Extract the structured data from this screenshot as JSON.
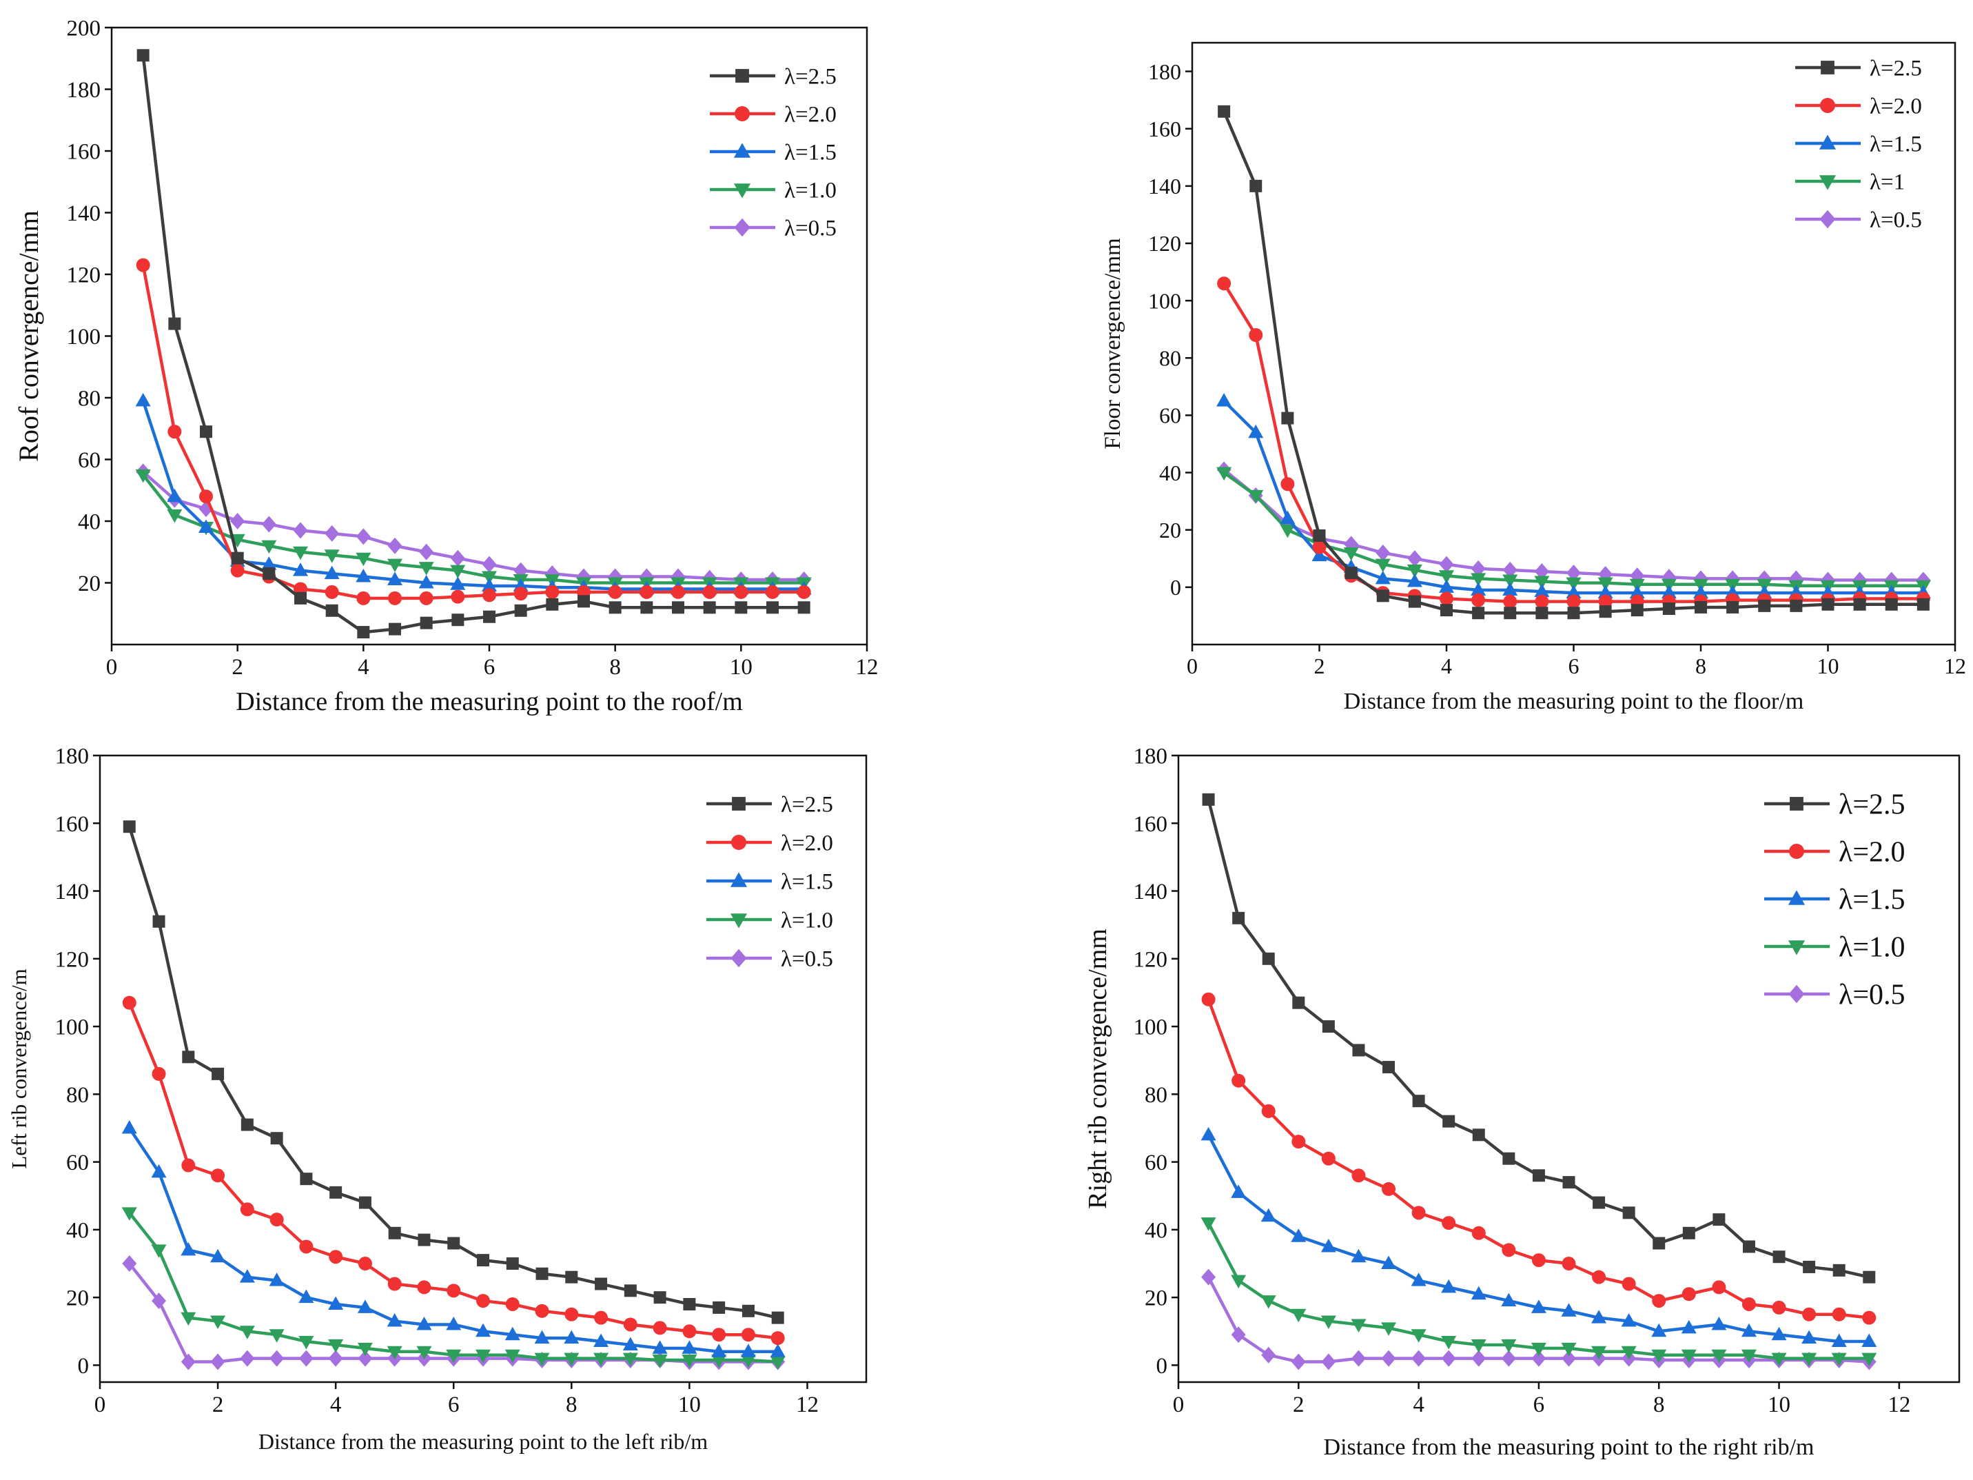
{
  "chart_data": [
    {
      "id": "roof",
      "type": "line",
      "title": "",
      "xlabel": "Distance from the measuring point to the roof/m",
      "ylabel": "Roof convergence/mm",
      "xlim": [
        0,
        12
      ],
      "ylim": [
        0,
        200
      ],
      "xticks": [
        0,
        2,
        4,
        6,
        8,
        10,
        12
      ],
      "yticks": [
        20,
        40,
        60,
        80,
        100,
        120,
        140,
        160,
        180,
        200
      ],
      "legend_position": "top-right",
      "x": [
        0.5,
        1,
        1.5,
        2,
        2.5,
        3,
        3.5,
        4,
        4.5,
        5,
        5.5,
        6,
        6.5,
        7,
        7.5,
        8,
        8.5,
        9,
        9.5,
        10,
        10.5,
        11
      ],
      "series": [
        {
          "name": "λ=2.5",
          "color": "#3d3d3d",
          "marker": "square",
          "values": [
            191,
            104,
            69,
            28,
            23,
            15,
            11,
            4,
            5,
            7,
            8,
            9,
            11,
            13,
            14,
            12,
            12,
            12,
            12,
            12,
            12,
            12
          ]
        },
        {
          "name": "λ=2.0",
          "color": "#f03232",
          "marker": "circle",
          "values": [
            123,
            69,
            48,
            24,
            22,
            18,
            17,
            15,
            15,
            15,
            15.5,
            16,
            16.5,
            17,
            17,
            17,
            17,
            17,
            17,
            17,
            17,
            17
          ]
        },
        {
          "name": "λ=1.5",
          "color": "#1c6fd8",
          "marker": "triangle-up",
          "values": [
            79,
            48,
            38,
            27,
            26,
            24,
            23,
            22,
            21,
            20,
            19.5,
            19,
            19,
            18.5,
            18.5,
            18,
            18,
            18,
            18,
            18,
            18,
            18
          ]
        },
        {
          "name": "λ=1.0",
          "color": "#2e9e5b",
          "marker": "triangle-down",
          "values": [
            55,
            42,
            38,
            34,
            32,
            30,
            29,
            28,
            26,
            25,
            24,
            22,
            21,
            21,
            20,
            20,
            20,
            20,
            20,
            20,
            20,
            20
          ]
        },
        {
          "name": "λ=0.5",
          "color": "#a56fe0",
          "marker": "diamond",
          "values": [
            56,
            47,
            44,
            40,
            39,
            37,
            36,
            35,
            32,
            30,
            28,
            26,
            24,
            23,
            22,
            22,
            22,
            22,
            21.5,
            21,
            21,
            21
          ]
        }
      ]
    },
    {
      "id": "floor",
      "type": "line",
      "title": "",
      "xlabel": "Distance from the measuring point to the floor/m",
      "ylabel": "Floor convergence/mm",
      "xlim": [
        0,
        12
      ],
      "ylim": [
        -20,
        190
      ],
      "xticks": [
        0,
        2,
        4,
        6,
        8,
        10,
        12
      ],
      "yticks": [
        0,
        20,
        40,
        60,
        80,
        100,
        120,
        140,
        160,
        180
      ],
      "legend_position": "top-right",
      "x": [
        0.5,
        1,
        1.5,
        2,
        2.5,
        3,
        3.5,
        4,
        4.5,
        5,
        5.5,
        6,
        6.5,
        7,
        7.5,
        8,
        8.5,
        9,
        9.5,
        10,
        10.5,
        11,
        11.5
      ],
      "series": [
        {
          "name": "λ=2.5",
          "color": "#3d3d3d",
          "marker": "square",
          "values": [
            166,
            140,
            59,
            18,
            5,
            -3,
            -5,
            -8,
            -9,
            -9,
            -9,
            -9,
            -8.5,
            -8,
            -7.5,
            -7,
            -7,
            -6.5,
            -6.5,
            -6,
            -6,
            -6,
            -6
          ]
        },
        {
          "name": "λ=2.0",
          "color": "#f03232",
          "marker": "circle",
          "values": [
            106,
            88,
            36,
            14,
            4,
            -2,
            -3,
            -4,
            -4.5,
            -5,
            -5,
            -5,
            -5,
            -5,
            -5,
            -5,
            -4.5,
            -4.5,
            -4.5,
            -4.5,
            -4,
            -4,
            -4
          ]
        },
        {
          "name": "λ=1.5",
          "color": "#1c6fd8",
          "marker": "triangle-up",
          "values": [
            65,
            54,
            24,
            11,
            7,
            3,
            2,
            0,
            -1,
            -1,
            -1.5,
            -2,
            -2,
            -2,
            -2,
            -2,
            -2,
            -2,
            -2,
            -2,
            -2,
            -2,
            -2
          ]
        },
        {
          "name": "λ=1",
          "color": "#2e9e5b",
          "marker": "triangle-down",
          "values": [
            40,
            32,
            20,
            15,
            12,
            8,
            6,
            4,
            3,
            2.5,
            2,
            1.5,
            1.5,
            1,
            1,
            1,
            1,
            1,
            0.5,
            0.5,
            0.5,
            0.5,
            0.5
          ]
        },
        {
          "name": "λ=0.5",
          "color": "#a56fe0",
          "marker": "diamond",
          "values": [
            41,
            32,
            22,
            17,
            15,
            12,
            10,
            8,
            6.5,
            6,
            5.5,
            5,
            4.5,
            4,
            3.5,
            3,
            3,
            3,
            3,
            2.5,
            2.5,
            2.5,
            2.5
          ]
        }
      ]
    },
    {
      "id": "left-rib",
      "type": "line",
      "title": "",
      "xlabel": "Distance from the measuring point to the left rib/m",
      "ylabel": "Left rib convergence/m",
      "xlim": [
        0,
        13
      ],
      "ylim": [
        -5,
        180
      ],
      "xticks": [
        0,
        2,
        4,
        6,
        8,
        10,
        12
      ],
      "yticks": [
        0,
        20,
        40,
        60,
        80,
        100,
        120,
        140,
        160,
        180
      ],
      "legend_position": "top-right",
      "x": [
        0.5,
        1,
        1.5,
        2,
        2.5,
        3,
        3.5,
        4,
        4.5,
        5,
        5.5,
        6,
        6.5,
        7,
        7.5,
        8,
        8.5,
        9,
        9.5,
        10,
        10.5,
        11,
        11.5
      ],
      "series": [
        {
          "name": "λ=2.5",
          "color": "#3d3d3d",
          "marker": "square",
          "values": [
            159,
            131,
            91,
            86,
            71,
            67,
            55,
            51,
            48,
            39,
            37,
            36,
            31,
            30,
            27,
            26,
            24,
            22,
            20,
            18,
            17,
            16,
            14
          ]
        },
        {
          "name": "λ=2.0",
          "color": "#f03232",
          "marker": "circle",
          "values": [
            107,
            86,
            59,
            56,
            46,
            43,
            35,
            32,
            30,
            24,
            23,
            22,
            19,
            18,
            16,
            15,
            14,
            12,
            11,
            10,
            9,
            9,
            8
          ]
        },
        {
          "name": "λ=1.5",
          "color": "#1c6fd8",
          "marker": "triangle-up",
          "values": [
            70,
            57,
            34,
            32,
            26,
            25,
            20,
            18,
            17,
            13,
            12,
            12,
            10,
            9,
            8,
            8,
            7,
            6,
            5,
            5,
            4,
            4,
            4
          ]
        },
        {
          "name": "λ=1.0",
          "color": "#2e9e5b",
          "marker": "triangle-down",
          "values": [
            45,
            34,
            14,
            13,
            10,
            9,
            7,
            6,
            5,
            4,
            4,
            3,
            3,
            3,
            2,
            2,
            2,
            2,
            1.5,
            1.5,
            1.5,
            1.5,
            1
          ]
        },
        {
          "name": "λ=0.5",
          "color": "#a56fe0",
          "marker": "diamond",
          "values": [
            30,
            19,
            1,
            1,
            2,
            2,
            2,
            2,
            2,
            2,
            2,
            2,
            2,
            2,
            1.5,
            1.5,
            1.5,
            1.5,
            1.5,
            1,
            1,
            1,
            1
          ]
        }
      ]
    },
    {
      "id": "right-rib",
      "type": "line",
      "title": "",
      "xlabel": "Distance from the measuring point to the right rib/m",
      "ylabel": "Right rib convergence/mm",
      "xlim": [
        0,
        13
      ],
      "ylim": [
        -5,
        180
      ],
      "xticks": [
        0,
        2,
        4,
        6,
        8,
        10,
        12
      ],
      "yticks": [
        0,
        20,
        40,
        60,
        80,
        100,
        120,
        140,
        160,
        180
      ],
      "legend_position": "top-right",
      "x": [
        0.5,
        1,
        1.5,
        2,
        2.5,
        3,
        3.5,
        4,
        4.5,
        5,
        5.5,
        6,
        6.5,
        7,
        7.5,
        8,
        8.5,
        9,
        9.5,
        10,
        10.5,
        11,
        11.5
      ],
      "series": [
        {
          "name": "λ=2.5",
          "color": "#3d3d3d",
          "marker": "square",
          "values": [
            167,
            132,
            120,
            107,
            100,
            93,
            88,
            78,
            72,
            68,
            61,
            56,
            54,
            48,
            45,
            36,
            39,
            43,
            35,
            32,
            29,
            28,
            26
          ]
        },
        {
          "name": "λ=2.0",
          "color": "#f03232",
          "marker": "circle",
          "values": [
            108,
            84,
            75,
            66,
            61,
            56,
            52,
            45,
            42,
            39,
            34,
            31,
            30,
            26,
            24,
            19,
            21,
            23,
            18,
            17,
            15,
            15,
            14
          ]
        },
        {
          "name": "λ=1.5",
          "color": "#1c6fd8",
          "marker": "triangle-up",
          "values": [
            68,
            51,
            44,
            38,
            35,
            32,
            30,
            25,
            23,
            21,
            19,
            17,
            16,
            14,
            13,
            10,
            11,
            12,
            10,
            9,
            8,
            7,
            7
          ]
        },
        {
          "name": "λ=1.0",
          "color": "#2e9e5b",
          "marker": "triangle-down",
          "values": [
            42,
            25,
            19,
            15,
            13,
            12,
            11,
            9,
            7,
            6,
            6,
            5,
            5,
            4,
            4,
            3,
            3,
            3,
            3,
            2,
            2,
            2,
            2
          ]
        },
        {
          "name": "λ=0.5",
          "color": "#a56fe0",
          "marker": "diamond",
          "values": [
            26,
            9,
            3,
            1,
            1,
            2,
            2,
            2,
            2,
            2,
            2,
            2,
            2,
            2,
            2,
            1.5,
            1.5,
            1.5,
            1.5,
            1.5,
            1.5,
            1.5,
            1
          ]
        }
      ]
    }
  ]
}
